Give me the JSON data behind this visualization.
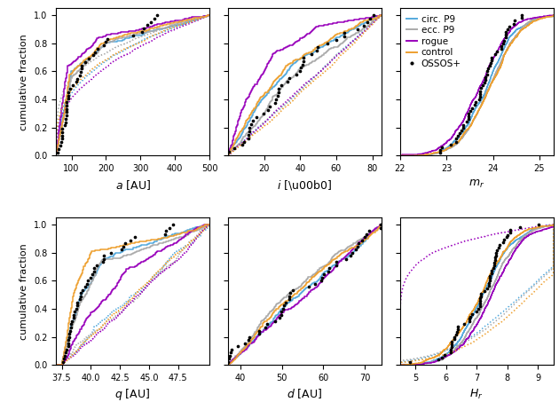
{
  "colors": {
    "circ_P9": "#55AADD",
    "ecc_P9": "#AAAAAA",
    "rogue": "#9900BB",
    "control": "#EEA030",
    "ossos": "#000000"
  },
  "figsize": [
    6.3,
    4.62
  ],
  "dpi": 100,
  "panels": {
    "a": {
      "xlabel": "$a$ [AU]",
      "xlim": [
        55,
        500
      ],
      "xticks": [
        100,
        200,
        300,
        400,
        500
      ],
      "ylim": [
        0,
        1.05
      ]
    },
    "i": {
      "xlabel": "$i$ [\\u00b0]",
      "xlim": [
        0,
        85
      ],
      "xticks": [
        20,
        40,
        60,
        80
      ],
      "ylim": [
        0,
        1.05
      ]
    },
    "mr": {
      "xlabel": "$m_r$",
      "xlim": [
        22,
        25.3
      ],
      "xticks": [
        22,
        23,
        24,
        25
      ],
      "ylim": [
        0,
        1.05
      ]
    },
    "q": {
      "xlabel": "$q$ [AU]",
      "xlim": [
        37,
        50.2
      ],
      "xticks": [
        37.5,
        40.0,
        42.5,
        45.0,
        47.5
      ],
      "ylim": [
        0,
        1.05
      ]
    },
    "d": {
      "xlabel": "$d$ [AU]",
      "xlim": [
        37,
        74
      ],
      "xticks": [
        40,
        50,
        60,
        70
      ],
      "ylim": [
        0,
        1.05
      ]
    },
    "Hr": {
      "xlabel": "$H_r$",
      "xlim": [
        4.5,
        9.5
      ],
      "xticks": [
        5,
        6,
        7,
        8,
        9
      ],
      "ylim": [
        0,
        1.05
      ]
    }
  }
}
